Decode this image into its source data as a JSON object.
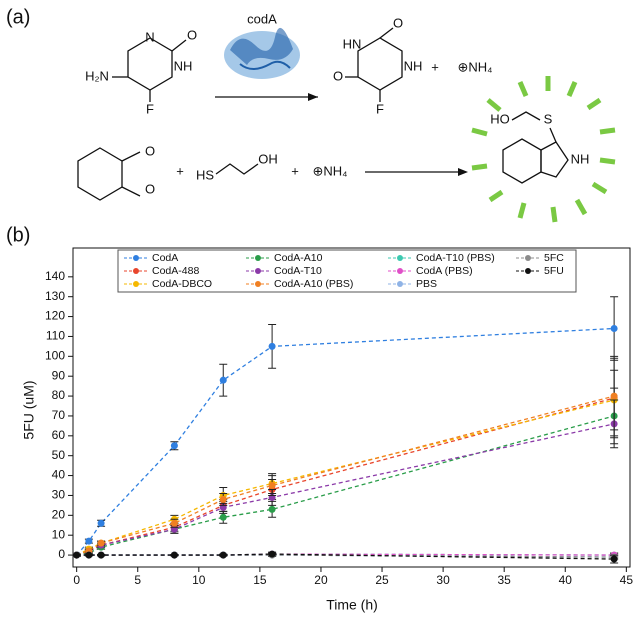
{
  "scheme": {
    "labels": [
      "(a)",
      "codA",
      "H₂N",
      "N",
      "O",
      "NH",
      "F",
      "HN",
      "O",
      "O",
      "NH",
      "F",
      "+",
      "⊕NH₄",
      "O",
      "O",
      "+",
      "HS",
      "OH",
      "+",
      "⊕NH₄",
      "HO",
      "S",
      "NH",
      "(b)"
    ]
  },
  "chart_data": {
    "type": "line",
    "x_label": "Time (h)",
    "y_label": "5FU (uM)",
    "x": [
      0,
      1,
      2,
      8,
      12,
      16,
      44
    ],
    "xlim": [
      -0.3,
      45.3
    ],
    "xticks": [
      0,
      5,
      10,
      15,
      20,
      25,
      30,
      35,
      40,
      45
    ],
    "ylim": [
      -6,
      154.5
    ],
    "yticks": [
      0,
      10,
      20,
      30,
      40,
      50,
      60,
      70,
      80,
      90,
      100,
      110,
      120,
      130,
      140
    ],
    "legend": "top",
    "series": [
      {
        "name": "CodA",
        "color": "#2f7fe0",
        "values": [
          0,
          7,
          16,
          55,
          88,
          105,
          114
        ],
        "errors": [
          0.5,
          1,
          1.5,
          2,
          8,
          11,
          16
        ]
      },
      {
        "name": "CodA-488",
        "color": "#e8452c",
        "values": [
          0,
          2,
          5,
          14,
          25,
          33,
          79
        ],
        "errors": [
          0.5,
          1,
          1,
          2,
          3,
          5,
          20
        ]
      },
      {
        "name": "CodA-DBCO",
        "color": "#f5b800",
        "values": [
          0,
          3,
          6,
          18,
          30,
          36,
          78
        ],
        "errors": [
          0.5,
          1,
          1,
          2,
          4,
          5,
          15
        ]
      },
      {
        "name": "CodA-A10",
        "color": "#2a9d4a",
        "values": [
          0,
          1,
          4,
          13,
          19,
          23,
          70
        ],
        "errors": [
          0.5,
          1,
          1,
          2,
          3,
          4,
          14
        ]
      },
      {
        "name": "CodA-T10",
        "color": "#8b3aa8",
        "values": [
          0,
          2,
          5,
          13,
          24,
          29,
          66
        ],
        "errors": [
          0.5,
          1,
          1,
          2,
          3,
          4,
          12
        ]
      },
      {
        "name": "CodA-A10 (PBS)",
        "color": "#f07f22",
        "values": [
          0,
          2,
          6,
          16,
          28,
          35,
          80
        ],
        "errors": [
          0.5,
          1,
          1,
          2,
          3,
          5,
          20
        ]
      },
      {
        "name": "CodA-T10 (PBS)",
        "color": "#3cc9b0",
        "values": [
          0,
          0,
          0,
          0,
          0,
          0.5,
          0
        ],
        "errors": [
          0.3,
          0.3,
          0.3,
          0.3,
          0.3,
          0.5,
          1
        ]
      },
      {
        "name": "CodA (PBS)",
        "color": "#e04fc8",
        "values": [
          0,
          0,
          0,
          0,
          0,
          0.5,
          0
        ],
        "errors": [
          0.3,
          0.3,
          0.3,
          0.3,
          0.3,
          0.5,
          1
        ]
      },
      {
        "name": "PBS",
        "color": "#8fb3e6",
        "values": [
          0,
          0,
          0,
          0,
          0,
          0,
          -1
        ],
        "errors": [
          0.3,
          0.3,
          0.3,
          0.3,
          0.3,
          0.5,
          1
        ]
      },
      {
        "name": "5FC",
        "color": "#8c8c8c",
        "values": [
          0,
          0,
          0,
          0,
          0,
          0,
          -1
        ],
        "errors": [
          0.3,
          0.3,
          0.3,
          0.3,
          0.3,
          0.5,
          1
        ]
      },
      {
        "name": "5FU",
        "color": "#111111",
        "values": [
          0,
          0,
          0,
          0,
          0,
          0.5,
          -2
        ],
        "errors": [
          0.3,
          0.3,
          0.3,
          0.3,
          0.5,
          1,
          2
        ]
      }
    ]
  }
}
